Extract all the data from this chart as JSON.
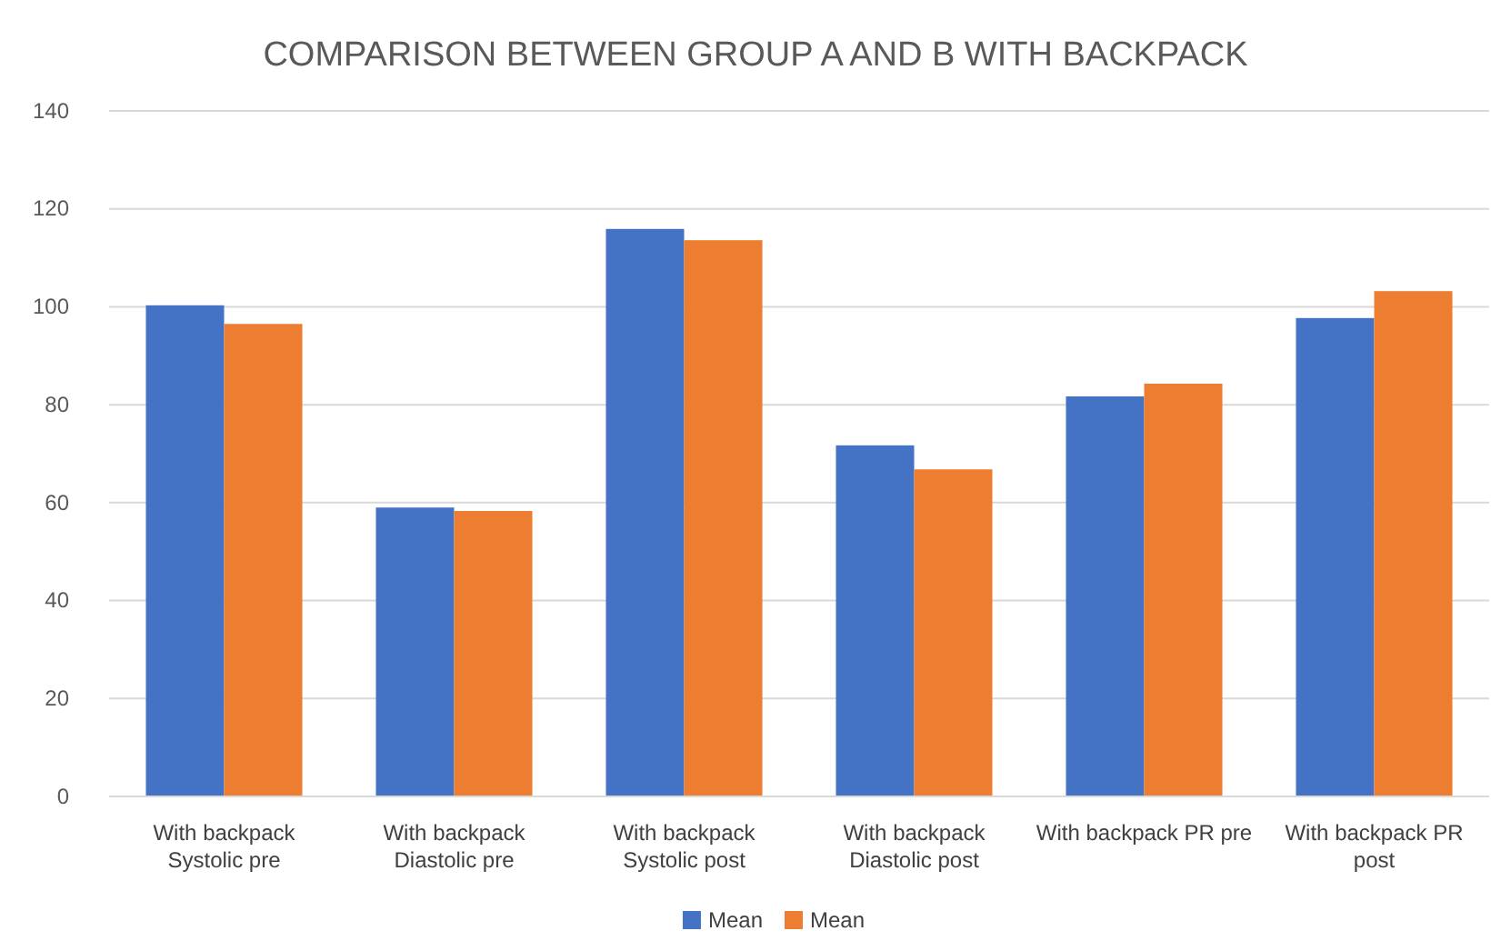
{
  "chart_data": {
    "type": "bar",
    "title": "COMPARISON BETWEEN GROUP A AND B WITH BACKPACK",
    "categories": [
      "With backpack Systolic pre",
      "With backpack Diastolic pre",
      "With backpack Systolic post",
      "With backpack Diastolic post",
      "With backpack PR pre",
      "With backpack PR post"
    ],
    "series": [
      {
        "name": "Mean",
        "color": "#4472c4",
        "values": [
          100.3,
          59,
          115.9,
          71.7,
          81.7,
          97.7
        ]
      },
      {
        "name": "Mean",
        "color": "#ed7d31",
        "values": [
          96.5,
          58.3,
          113.6,
          66.8,
          84.3,
          103.2
        ]
      }
    ],
    "ylim": [
      0,
      140
    ],
    "yticks": [
      0,
      20,
      40,
      60,
      80,
      100,
      120,
      140
    ],
    "grid": "y",
    "legend": "bottom"
  }
}
